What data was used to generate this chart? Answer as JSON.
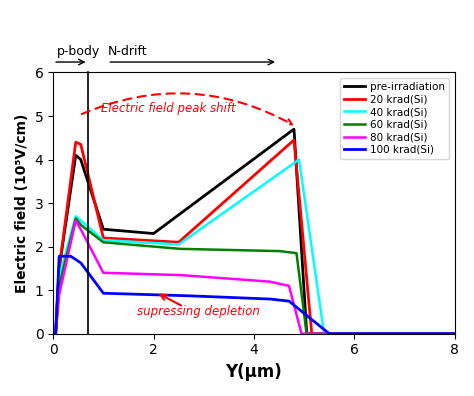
{
  "title": "",
  "xlabel": "Y(μm)",
  "ylabel": "Electric field (10⁵V/cm)",
  "xlim": [
    0,
    8
  ],
  "ylim": [
    0,
    6
  ],
  "xticks": [
    0,
    2,
    4,
    6,
    8
  ],
  "yticks": [
    0,
    1,
    2,
    3,
    4,
    5,
    6
  ],
  "legend_labels": [
    "pre-irradiation",
    "20 krad(Si)",
    "40 krad(Si)",
    "60 krad(Si)",
    "80 krad(Si)",
    "100 krad(Si)"
  ],
  "line_colors": [
    "black",
    "red",
    "cyan",
    "green",
    "magenta",
    "blue"
  ],
  "annotation1": "Electric field peak shift",
  "annotation2": "supressing depletion",
  "pbody_label": "p-body",
  "ndrift_label": "N-drift",
  "divider_x": 0.7,
  "background_color": "#ffffff"
}
